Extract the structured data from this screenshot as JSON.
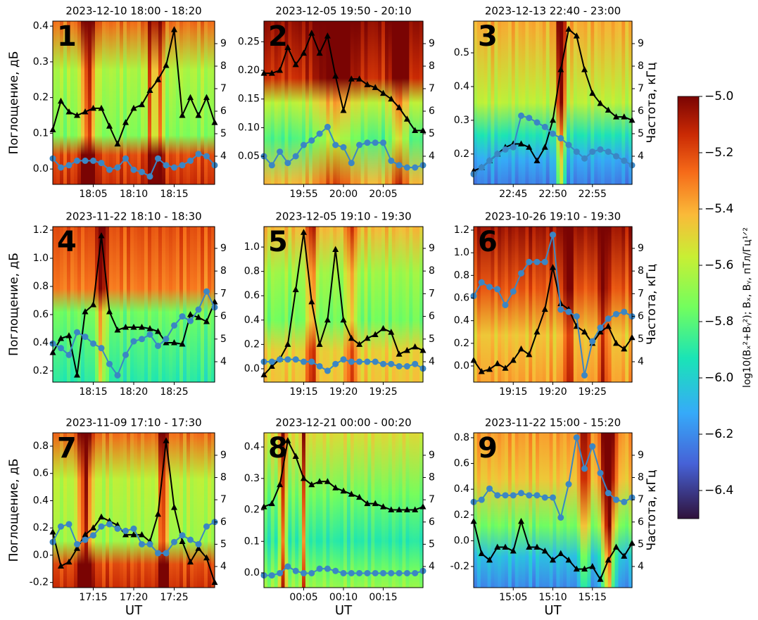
{
  "chart_data": [
    {
      "type": "line",
      "label": "1",
      "title": "2023-12-10 18:00 - 18:20",
      "ylabel": "Поглощение, дБ",
      "x": [
        0,
        1,
        2,
        3,
        4,
        5,
        6,
        7,
        8,
        9,
        10,
        11,
        12,
        13,
        14,
        15,
        16,
        17,
        18,
        19,
        20
      ],
      "xlim": [
        0,
        20
      ],
      "xticks": [
        {
          "value": 5,
          "label": "18:05"
        },
        {
          "value": 10,
          "label": "18:10"
        },
        {
          "value": 15,
          "label": "18:15"
        }
      ],
      "ylim": [
        -0.043,
        0.414
      ],
      "yticks": [
        {
          "value": 0,
          "label": "0.0"
        },
        0.1,
        0.2,
        0.3,
        0.4
      ],
      "y2lim": [
        2.75,
        10
      ],
      "y2ticks": [
        4,
        5,
        6,
        7,
        8,
        9
      ],
      "series": [
        {
          "color": "#000000",
          "marker": "triangle",
          "values": [
            0.11,
            0.19,
            0.16,
            0.15,
            0.16,
            0.17,
            0.17,
            0.12,
            0.07,
            0.13,
            0.17,
            0.18,
            0.22,
            0.25,
            0.29,
            0.39,
            0.15,
            0.2,
            0.15,
            0.2,
            0.13
          ]
        },
        {
          "color": "#3b86c4",
          "marker": "circle",
          "axis": "y2",
          "values": [
            3.9,
            3.5,
            3.6,
            3.8,
            3.8,
            3.8,
            3.7,
            3.4,
            3.5,
            3.9,
            3.4,
            3.3,
            3.1,
            3.9,
            3.6,
            3.5,
            3.6,
            3.8,
            4.1,
            4.0,
            3.6
          ]
        }
      ]
    },
    {
      "type": "line",
      "label": "2",
      "title": "2023-12-05 19:50 - 20:10",
      "x": [
        0,
        1,
        2,
        3,
        4,
        5,
        6,
        7,
        8,
        9,
        10,
        11,
        12,
        13,
        14,
        15,
        16,
        17,
        18,
        19,
        20
      ],
      "xlim": [
        0,
        20
      ],
      "xticks": [
        {
          "value": 5,
          "label": "19:55"
        },
        {
          "value": 10,
          "label": "20:00"
        },
        {
          "value": 15,
          "label": "20:05"
        }
      ],
      "ylim": [
        0.001,
        0.286
      ],
      "yticks": [
        0.05,
        {
          "value": 0.1,
          "label": "0.10"
        },
        0.15,
        {
          "value": 0.2,
          "label": "0.20"
        },
        0.25
      ],
      "y2lim": [
        2.75,
        10
      ],
      "y2ticks": [
        4,
        5,
        6,
        7,
        8,
        9
      ],
      "series": [
        {
          "color": "#000000",
          "marker": "triangle",
          "values": [
            0.195,
            0.195,
            0.2,
            0.24,
            0.21,
            0.23,
            0.265,
            0.23,
            0.26,
            0.19,
            0.13,
            0.185,
            0.185,
            0.175,
            0.17,
            0.16,
            0.15,
            0.135,
            0.115,
            0.095,
            0.095
          ]
        },
        {
          "color": "#3b86c4",
          "marker": "circle",
          "axis": "y2",
          "values": [
            4.0,
            3.6,
            4.2,
            3.7,
            4.0,
            4.5,
            4.7,
            5.0,
            5.3,
            4.5,
            4.4,
            3.7,
            4.5,
            4.6,
            4.6,
            4.6,
            3.8,
            3.6,
            3.5,
            3.5,
            3.6
          ]
        }
      ]
    },
    {
      "type": "line",
      "label": "3",
      "title": "2023-12-13 22:40 - 23:00",
      "y2label": "Частота, кГц",
      "x": [
        0,
        1,
        2,
        3,
        4,
        5,
        6,
        7,
        8,
        9,
        10,
        11,
        12,
        13,
        14,
        15,
        16,
        17,
        18,
        19,
        20
      ],
      "xlim": [
        0,
        20
      ],
      "xticks": [
        {
          "value": 5,
          "label": "22:45"
        },
        {
          "value": 10,
          "label": "22:50"
        },
        {
          "value": 15,
          "label": "22:55"
        }
      ],
      "ylim": [
        0.11,
        0.594
      ],
      "yticks": [
        0.2,
        0.3,
        0.4,
        0.5
      ],
      "y2lim": [
        2.75,
        10
      ],
      "y2ticks": [
        4,
        5,
        6,
        7,
        8,
        9
      ],
      "series": [
        {
          "color": "#000000",
          "marker": "triangle",
          "values": [
            0.15,
            0.16,
            0.18,
            0.2,
            0.22,
            0.23,
            0.23,
            0.22,
            0.18,
            0.22,
            0.3,
            0.45,
            0.57,
            0.55,
            0.45,
            0.38,
            0.35,
            0.33,
            0.31,
            0.31,
            0.3
          ]
        },
        {
          "color": "#3b86c4",
          "marker": "circle",
          "axis": "y2",
          "values": [
            3.2,
            3.5,
            3.8,
            4.1,
            4.3,
            4.4,
            5.8,
            5.7,
            5.5,
            5.3,
            5.0,
            4.8,
            4.5,
            4.2,
            3.9,
            4.2,
            4.3,
            4.2,
            4.0,
            3.8,
            3.6
          ]
        }
      ]
    },
    {
      "type": "line",
      "label": "4",
      "title": "2023-11-22 18:10 - 18:30",
      "ylabel": "Поглощение, дБ",
      "x": [
        0,
        1,
        2,
        3,
        4,
        5,
        6,
        7,
        8,
        9,
        10,
        11,
        12,
        13,
        14,
        15,
        16,
        17,
        18,
        19,
        20
      ],
      "xlim": [
        0,
        20
      ],
      "xticks": [
        {
          "value": 5,
          "label": "18:15"
        },
        {
          "value": 10,
          "label": "18:20"
        },
        {
          "value": 15,
          "label": "18:25"
        }
      ],
      "ylim": [
        0.12,
        1.225
      ],
      "yticks": [
        0.2,
        0.4,
        0.6,
        0.8,
        {
          "value": 1,
          "label": "1.0"
        },
        1.2
      ],
      "y2lim": [
        3.1,
        9.96
      ],
      "y2ticks": [
        4,
        5,
        6,
        7,
        8,
        9
      ],
      "series": [
        {
          "color": "#000000",
          "marker": "triangle",
          "values": [
            0.33,
            0.43,
            0.45,
            0.17,
            0.62,
            0.67,
            1.16,
            0.62,
            0.49,
            0.51,
            0.51,
            0.51,
            0.5,
            0.48,
            0.4,
            0.4,
            0.39,
            0.6,
            0.58,
            0.55,
            0.69
          ]
        },
        {
          "color": "#3b86c4",
          "marker": "circle",
          "axis": "y2",
          "values": [
            4.8,
            4.6,
            4.3,
            5.3,
            5.1,
            4.8,
            4.6,
            3.9,
            3.4,
            4.3,
            4.9,
            5.0,
            5.2,
            4.7,
            5.0,
            5.6,
            6.0,
            5.8,
            6.3,
            7.1,
            6.4
          ]
        }
      ]
    },
    {
      "type": "line",
      "label": "5",
      "title": "2023-12-05 19:10 - 19:30",
      "x": [
        0,
        1,
        2,
        3,
        4,
        5,
        6,
        7,
        8,
        9,
        10,
        11,
        12,
        13,
        14,
        15,
        16,
        17,
        18,
        19,
        20
      ],
      "xlim": [
        0,
        20
      ],
      "xticks": [
        {
          "value": 5,
          "label": "19:15"
        },
        {
          "value": 10,
          "label": "19:20"
        },
        {
          "value": 15,
          "label": "19:25"
        }
      ],
      "ylim": [
        -0.11,
        1.168
      ],
      "yticks": [
        {
          "value": 0,
          "label": "0.0"
        },
        0.2,
        0.4,
        0.6,
        0.8,
        {
          "value": 1,
          "label": "1.0"
        }
      ],
      "y2lim": [
        3.1,
        9.96
      ],
      "y2ticks": [
        4,
        5,
        6,
        7,
        8,
        9
      ],
      "series": [
        {
          "color": "#000000",
          "marker": "triangle",
          "values": [
            -0.05,
            0.02,
            0.08,
            0.2,
            0.65,
            1.12,
            0.55,
            0.2,
            0.4,
            0.98,
            0.4,
            0.25,
            0.2,
            0.25,
            0.28,
            0.33,
            0.3,
            0.12,
            0.15,
            0.18,
            0.15
          ]
        },
        {
          "color": "#3b86c4",
          "marker": "circle",
          "axis": "y2",
          "values": [
            4.0,
            4.0,
            4.1,
            4.1,
            4.1,
            4.0,
            4.0,
            3.8,
            3.6,
            3.9,
            4.1,
            4.0,
            4.0,
            4.0,
            4.0,
            3.9,
            3.9,
            3.8,
            3.8,
            3.9,
            3.7
          ]
        }
      ]
    },
    {
      "type": "line",
      "label": "6",
      "title": "2023-10-26 19:10 - 19:30",
      "y2label": "Частота, кГц",
      "x": [
        0,
        1,
        2,
        3,
        4,
        5,
        6,
        7,
        8,
        9,
        10,
        11,
        12,
        13,
        14,
        15,
        16,
        17,
        18,
        19,
        20
      ],
      "xlim": [
        0,
        20
      ],
      "xticks": [
        {
          "value": 5,
          "label": "19:15"
        },
        {
          "value": 10,
          "label": "19:20"
        },
        {
          "value": 15,
          "label": "19:25"
        }
      ],
      "ylim": [
        -0.143,
        1.231
      ],
      "yticks": [
        {
          "value": 0,
          "label": "0.0"
        },
        0.2,
        0.4,
        0.6,
        0.8,
        {
          "value": 1,
          "label": "1.0"
        },
        1.2
      ],
      "y2lim": [
        3.1,
        9.96
      ],
      "y2ticks": [
        4,
        5,
        6,
        7,
        8,
        9
      ],
      "series": [
        {
          "color": "#000000",
          "marker": "triangle",
          "values": [
            0.05,
            -0.05,
            -0.03,
            0.02,
            -0.02,
            0.05,
            0.15,
            0.1,
            0.3,
            0.5,
            0.87,
            0.55,
            0.5,
            0.35,
            0.3,
            0.2,
            0.3,
            0.35,
            0.2,
            0.15,
            0.25
          ]
        },
        {
          "color": "#3b86c4",
          "marker": "circle",
          "axis": "y2",
          "values": [
            6.9,
            7.5,
            7.3,
            7.2,
            6.5,
            7.1,
            7.9,
            8.4,
            8.4,
            8.4,
            9.6,
            6.3,
            6.2,
            6.0,
            3.4,
            4.9,
            5.5,
            5.9,
            6.1,
            6.2,
            6.0
          ]
        }
      ]
    },
    {
      "type": "line",
      "label": "7",
      "title": "2023-11-09 17:10 - 17:30",
      "ylabel": "Поглощение, дБ",
      "xlabel": "UT",
      "x": [
        0,
        1,
        2,
        3,
        4,
        5,
        6,
        7,
        8,
        9,
        10,
        11,
        12,
        13,
        14,
        15,
        16,
        17,
        18,
        19,
        20
      ],
      "xlim": [
        0,
        20
      ],
      "xticks": [
        {
          "value": 5,
          "label": "17:15"
        },
        {
          "value": 10,
          "label": "17:20"
        },
        {
          "value": 15,
          "label": "17:25"
        }
      ],
      "ylim": [
        -0.238,
        0.898
      ],
      "yticks": [
        -0.2,
        {
          "value": 0,
          "label": "0.0"
        },
        0.2,
        0.4,
        0.6,
        0.8
      ],
      "y2lim": [
        3.05,
        10.01
      ],
      "y2ticks": [
        4,
        5,
        6,
        7,
        8,
        9
      ],
      "series": [
        {
          "color": "#000000",
          "marker": "triangle",
          "values": [
            0.17,
            -0.08,
            -0.05,
            0.05,
            0.15,
            0.2,
            0.28,
            0.25,
            0.22,
            0.15,
            0.15,
            0.15,
            0.1,
            0.3,
            0.84,
            0.35,
            0.1,
            -0.05,
            0.05,
            -0.02,
            -0.2
          ]
        },
        {
          "color": "#3b86c4",
          "marker": "circle",
          "axis": "y2",
          "values": [
            5.1,
            5.8,
            5.9,
            5.0,
            5.2,
            5.4,
            5.8,
            5.9,
            5.7,
            5.6,
            5.7,
            5.0,
            5.0,
            4.6,
            4.6,
            5.1,
            5.4,
            5.2,
            5.0,
            5.8,
            6.0
          ]
        }
      ]
    },
    {
      "type": "line",
      "label": "8",
      "title": "2023-12-21 00:00 - 00:20",
      "xlabel": "UT",
      "x": [
        0,
        1,
        2,
        3,
        4,
        5,
        6,
        7,
        8,
        9,
        10,
        11,
        12,
        13,
        14,
        15,
        16,
        17,
        18,
        19,
        20
      ],
      "xlim": [
        0,
        20
      ],
      "xticks": [
        {
          "value": 5,
          "label": "00:05"
        },
        {
          "value": 10,
          "label": "00:10"
        },
        {
          "value": 15,
          "label": "00:15"
        }
      ],
      "ylim": [
        -0.047,
        0.445
      ],
      "yticks": [
        {
          "value": 0,
          "label": "0.0"
        },
        0.1,
        0.2,
        0.3,
        0.4
      ],
      "y2lim": [
        3.05,
        10.01
      ],
      "y2ticks": [
        4,
        5,
        6,
        7,
        8,
        9
      ],
      "series": [
        {
          "color": "#000000",
          "marker": "triangle",
          "values": [
            0.21,
            0.22,
            0.28,
            0.42,
            0.37,
            0.3,
            0.28,
            0.29,
            0.29,
            0.27,
            0.26,
            0.25,
            0.24,
            0.22,
            0.22,
            0.21,
            0.2,
            0.2,
            0.2,
            0.2,
            0.21
          ]
        },
        {
          "color": "#3b86c4",
          "marker": "circle",
          "axis": "y2",
          "values": [
            3.6,
            3.6,
            3.7,
            4.0,
            3.8,
            3.7,
            3.7,
            3.9,
            3.9,
            3.8,
            3.7,
            3.7,
            3.7,
            3.7,
            3.7,
            3.7,
            3.7,
            3.7,
            3.7,
            3.7,
            3.8
          ]
        }
      ]
    },
    {
      "type": "line",
      "label": "9",
      "title": "2023-11-22 15:00 - 15:20",
      "y2label": "Частота, кГц",
      "xlabel": "UT",
      "x": [
        0,
        1,
        2,
        3,
        4,
        5,
        6,
        7,
        8,
        9,
        10,
        11,
        12,
        13,
        14,
        15,
        16,
        17,
        18,
        19,
        20
      ],
      "xlim": [
        0,
        20
      ],
      "xticks": [
        {
          "value": 5,
          "label": "15:05"
        },
        {
          "value": 10,
          "label": "15:10"
        },
        {
          "value": 15,
          "label": "15:15"
        }
      ],
      "ylim": [
        -0.364,
        0.838
      ],
      "yticks": [
        -0.2,
        {
          "value": 0,
          "label": "0.0"
        },
        0.2,
        0.4,
        0.6,
        0.8
      ],
      "y2lim": [
        3.05,
        10.01
      ],
      "y2ticks": [
        4,
        5,
        6,
        7,
        8,
        9
      ],
      "series": [
        {
          "color": "#000000",
          "marker": "triangle",
          "values": [
            0.15,
            -0.1,
            -0.15,
            -0.05,
            -0.05,
            -0.08,
            0.15,
            -0.05,
            -0.05,
            -0.08,
            -0.15,
            -0.1,
            -0.15,
            -0.22,
            -0.22,
            -0.2,
            -0.3,
            -0.15,
            -0.05,
            -0.12,
            -0.02
          ]
        },
        {
          "color": "#3b86c4",
          "marker": "circle",
          "axis": "y2",
          "values": [
            6.9,
            7.0,
            7.5,
            7.2,
            7.2,
            7.2,
            7.3,
            7.2,
            7.2,
            7.1,
            7.1,
            6.2,
            7.7,
            9.8,
            8.4,
            9.4,
            8.2,
            7.3,
            7.0,
            6.9,
            7.1
          ]
        }
      ]
    }
  ],
  "colorbar": {
    "label": "log10(Bₓ²+Bᵧ²); Bₓ, Bᵧ, пТл/Гц¹ᐟ²",
    "lim": [
      -6.5,
      -5.0
    ],
    "ticks": [
      {
        "value": -5.0,
        "label": "−5.0"
      },
      {
        "value": -5.2,
        "label": "−5.2"
      },
      {
        "value": -5.4,
        "label": "−5.4"
      },
      {
        "value": -5.6,
        "label": "−5.6"
      },
      {
        "value": -5.8,
        "label": "−5.8"
      },
      {
        "value": -6.0,
        "label": "−6.0"
      },
      {
        "value": -6.2,
        "label": "−6.2"
      },
      {
        "value": -6.4,
        "label": "−6.4"
      }
    ]
  }
}
